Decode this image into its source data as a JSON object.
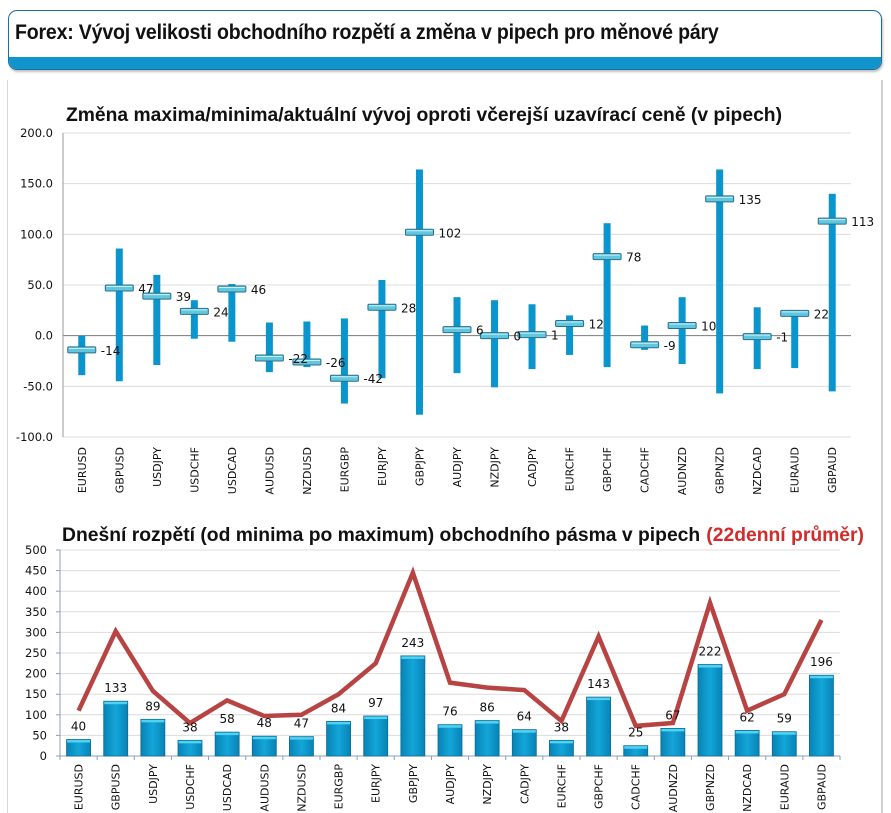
{
  "header": {
    "title": "Forex: Vývoj velikosti obchodního rozpětí a změna v pipech pro měnové páry"
  },
  "colors": {
    "accent": "#0f95cc",
    "bar": "#0a96cc",
    "marker": "#5fc8e0",
    "line": "#b84343",
    "highlight_text": "#d42a2a"
  },
  "chart_data": [
    {
      "type": "bar",
      "subtype": "high-low-close",
      "title": "Změna maxima/minima/aktuální vývoj oproti včerejší uzavírací ceně (v pipech)",
      "xlabel": "",
      "ylabel": "",
      "ylim": [
        -100,
        200
      ],
      "yticks": [
        200,
        150,
        100,
        50,
        0,
        -50,
        -100
      ],
      "ytick_labels": [
        "200.0",
        "150.0",
        "100.0",
        "50.0",
        "0.0",
        "-50.0",
        "-100.0"
      ],
      "grid": true,
      "categories": [
        "EURUSD",
        "GBPUSD",
        "USDJPY",
        "USDCHF",
        "USDCAD",
        "AUDUSD",
        "NZDUSD",
        "EURGBP",
        "EURJPY",
        "GBPJPY",
        "AUDJPY",
        "NZDJPY",
        "CADJPY",
        "EURCHF",
        "GBPCHF",
        "CADCHF",
        "AUDNZD",
        "GBPNZD",
        "NZDCAD",
        "EURAUD",
        "GBPAUD"
      ],
      "series": [
        {
          "name": "Maximum",
          "values": [
            0,
            86,
            60,
            35,
            51,
            13,
            14,
            17,
            55,
            164,
            38,
            35,
            31,
            20,
            111,
            10,
            38,
            164,
            28,
            24,
            140
          ]
        },
        {
          "name": "Minimum",
          "values": [
            -39,
            -45,
            -29,
            -3,
            -6,
            -36,
            -31,
            -67,
            -42,
            -78,
            -37,
            -51,
            -33,
            -19,
            -31,
            -14,
            -28,
            -57,
            -33,
            -32,
            -55
          ]
        },
        {
          "name": "Aktuální",
          "values": [
            -14,
            47,
            39,
            24,
            46,
            -22,
            -26,
            -42,
            28,
            102,
            6,
            0,
            1,
            12,
            78,
            -9,
            10,
            135,
            -1,
            22,
            113
          ]
        }
      ],
      "data_labels": [
        "-14",
        "47",
        "39",
        "24",
        "46",
        "-22",
        "-26",
        "-42",
        "28",
        "102",
        "6",
        "0",
        "1",
        "12",
        "78",
        "-9",
        "10",
        "135",
        "-1",
        "22",
        "113"
      ]
    },
    {
      "type": "bar",
      "subtype": "bar-with-line",
      "title": "Dnešní rozpětí (od minima po maximum) obchodního pásma v pipech",
      "title_highlight": "(22denní průměr)",
      "xlabel": "",
      "ylabel": "",
      "ylim": [
        0,
        500
      ],
      "yticks": [
        500,
        450,
        400,
        350,
        300,
        250,
        200,
        150,
        100,
        50,
        0
      ],
      "ytick_labels": [
        "500",
        "450",
        "400",
        "350",
        "300",
        "250",
        "200",
        "150",
        "100",
        "50",
        "0"
      ],
      "grid": true,
      "categories": [
        "EURUSD",
        "GBPUSD",
        "USDJPY",
        "USDCHF",
        "USDCAD",
        "AUDUSD",
        "NZDUSD",
        "EURGBP",
        "EURJPY",
        "GBPJPY",
        "AUDJPY",
        "NZDJPY",
        "CADJPY",
        "EURCHF",
        "GBPCHF",
        "CADCHF",
        "AUDNZD",
        "GBPNZD",
        "NZDCAD",
        "EURAUD",
        "GBPAUD"
      ],
      "series": [
        {
          "name": "Dnešní rozpětí",
          "type": "bar",
          "values": [
            40,
            133,
            89,
            38,
            58,
            48,
            47,
            84,
            97,
            243,
            76,
            86,
            64,
            38,
            143,
            25,
            67,
            222,
            62,
            59,
            196
          ]
        },
        {
          "name": "22denní průměr",
          "type": "line",
          "values": [
            110,
            303,
            158,
            80,
            135,
            97,
            100,
            150,
            225,
            445,
            178,
            166,
            160,
            85,
            290,
            73,
            80,
            372,
            110,
            150,
            330
          ]
        }
      ],
      "data_labels": [
        "40",
        "133",
        "89",
        "38",
        "58",
        "48",
        "47",
        "84",
        "97",
        "243",
        "76",
        "86",
        "64",
        "38",
        "143",
        "25",
        "67",
        "222",
        "62",
        "59",
        "196"
      ]
    }
  ]
}
